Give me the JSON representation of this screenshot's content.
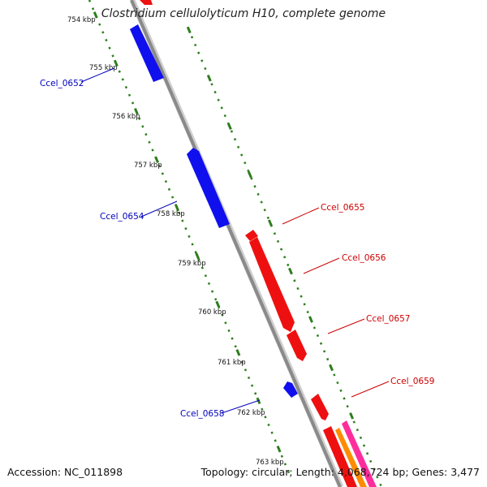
{
  "title": "Clostridium cellulolyticum H10, complete genome",
  "footer": {
    "accession": "Accession: NC_011898",
    "summary": "Topology: circular; Length: 4,068,724 bp; Genes: 3,477"
  },
  "colors": {
    "backbone": "#8a8a8a",
    "tick_track": "#2e7d1e",
    "reverse_gene": "#1010ee",
    "forward_gene": "#ee1010",
    "reverse_label": "#0000bb",
    "forward_label": "#cc0000",
    "orange_track": "#ff8c00",
    "magenta_track": "#ff2d9b"
  },
  "ticks": [
    "754 kbp",
    "755 kbp",
    "756 kbp",
    "757 kbp",
    "758 kbp",
    "759 kbp",
    "760 kbp",
    "761 kbp",
    "762 kbp",
    "763 kbp"
  ],
  "genes": [
    {
      "label": "Ccel_0652",
      "strand": "reverse"
    },
    {
      "label": "Ccel_0654",
      "strand": "reverse"
    },
    {
      "label": "Ccel_0655",
      "strand": "forward"
    },
    {
      "label": "Ccel_0656",
      "strand": "forward"
    },
    {
      "label": "Ccel_0657",
      "strand": "forward"
    },
    {
      "label": "Ccel_0658",
      "strand": "reverse"
    },
    {
      "label": "Ccel_0659",
      "strand": "forward"
    }
  ]
}
